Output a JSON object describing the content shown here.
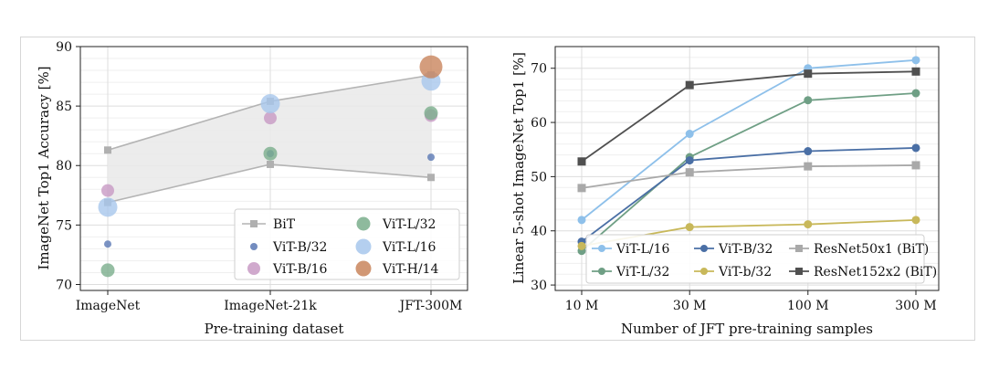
{
  "chart_data": [
    {
      "type": "scatter",
      "title": "",
      "xlabel": "Pre-training dataset",
      "ylabel": "ImageNet Top1 Accuracy [%]",
      "categories": [
        "ImageNet",
        "ImageNet-21k",
        "JFT-300M"
      ],
      "ylim": [
        69.5,
        90
      ],
      "yticks": [
        "70",
        "75",
        "80",
        "85",
        "90"
      ],
      "grid": true,
      "legend_position": "lower-right",
      "bit_band": {
        "name": "BiT",
        "upper": [
          81.3,
          85.4,
          87.6
        ],
        "lower": [
          76.9,
          80.1,
          79.0
        ]
      },
      "series": [
        {
          "name": "ViT-B/32",
          "color": "#5a78b4",
          "values": [
            73.4,
            81.0,
            80.7
          ]
        },
        {
          "name": "ViT-B/16",
          "color": "#c89ac4",
          "values": [
            77.9,
            84.0,
            84.2
          ]
        },
        {
          "name": "ViT-L/32",
          "color": "#7aae8c",
          "values": [
            71.2,
            81.0,
            84.4
          ]
        },
        {
          "name": "ViT-L/16",
          "color": "#a7c7ec",
          "values": [
            76.5,
            85.2,
            87.1
          ]
        },
        {
          "name": "ViT-H/14",
          "color": "#c9855c",
          "values": [
            null,
            null,
            88.3
          ]
        }
      ],
      "legend": [
        {
          "label": "BiT"
        },
        {
          "label": "ViT-L/32"
        },
        {
          "label": "ViT-B/32"
        },
        {
          "label": "ViT-L/16"
        },
        {
          "label": "ViT-B/16"
        },
        {
          "label": "ViT-H/14"
        }
      ]
    },
    {
      "type": "line",
      "title": "",
      "xlabel": "Number of JFT pre-training samples",
      "ylabel": "Linear 5-shot ImageNet Top1 [%]",
      "x": [
        10,
        30,
        100,
        300
      ],
      "xscale": "log",
      "xticks": [
        "10 M",
        "30 M",
        "100 M",
        "300 M"
      ],
      "ylim": [
        29,
        74
      ],
      "yticks": [
        "30",
        "40",
        "50",
        "60",
        "70"
      ],
      "grid": true,
      "legend_position": "lower-right",
      "series": [
        {
          "name": "ViT-L/16",
          "color": "#8ec0ea",
          "marker": "circle",
          "values": [
            42.0,
            57.9,
            70.0,
            71.5
          ]
        },
        {
          "name": "ViT-L/32",
          "color": "#6f9f85",
          "marker": "circle",
          "values": [
            36.3,
            53.6,
            64.1,
            65.4
          ]
        },
        {
          "name": "ViT-B/32",
          "color": "#4a6fa5",
          "marker": "circle",
          "values": [
            38.0,
            53.0,
            54.7,
            55.3
          ]
        },
        {
          "name": "ViT-b/32",
          "color": "#c8b85a",
          "marker": "circle",
          "values": [
            37.2,
            40.7,
            41.2,
            42.0
          ]
        },
        {
          "name": "ResNet50x1 (BiT)",
          "color": "#a9a9a9",
          "marker": "square",
          "values": [
            47.9,
            50.8,
            51.9,
            52.1
          ]
        },
        {
          "name": "ResNet152x2 (BiT)",
          "color": "#505050",
          "marker": "square",
          "values": [
            52.8,
            66.9,
            69.0,
            69.4
          ]
        }
      ],
      "legend": [
        {
          "label": "ViT-L/16"
        },
        {
          "label": "ViT-B/32"
        },
        {
          "label": "ResNet50x1 (BiT)"
        },
        {
          "label": "ViT-L/32"
        },
        {
          "label": "ViT-b/32"
        },
        {
          "label": "ResNet152x2 (BiT)"
        }
      ]
    }
  ]
}
